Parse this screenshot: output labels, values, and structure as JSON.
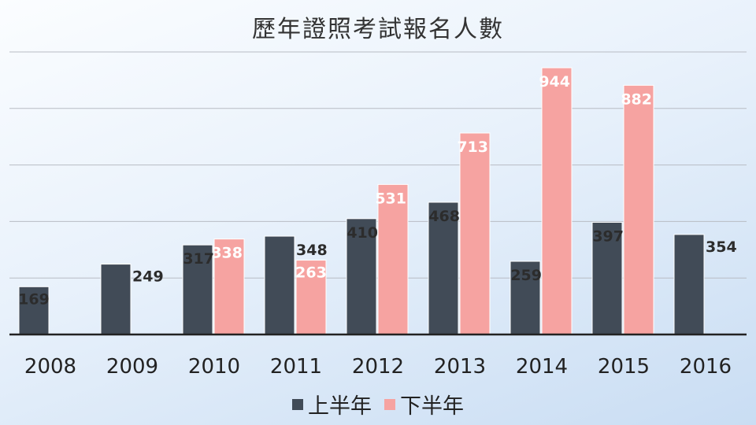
{
  "chart_data": {
    "type": "bar",
    "title": "歷年證照考試報名人數",
    "xlabel": "",
    "ylabel": "",
    "ylim": [
      0,
      1000
    ],
    "grid": true,
    "legend_position": "bottom",
    "categories": [
      "2008",
      "2009",
      "2010",
      "2011",
      "2012",
      "2013",
      "2014",
      "2015",
      "2016"
    ],
    "series": [
      {
        "name": "上半年",
        "color": "#414b57",
        "values": [
          169,
          249,
          317,
          348,
          410,
          468,
          259,
          397,
          354
        ]
      },
      {
        "name": "下半年",
        "color": "#f6a3a1",
        "values": [
          null,
          null,
          338,
          263,
          531,
          713,
          944,
          882,
          null
        ]
      }
    ]
  }
}
